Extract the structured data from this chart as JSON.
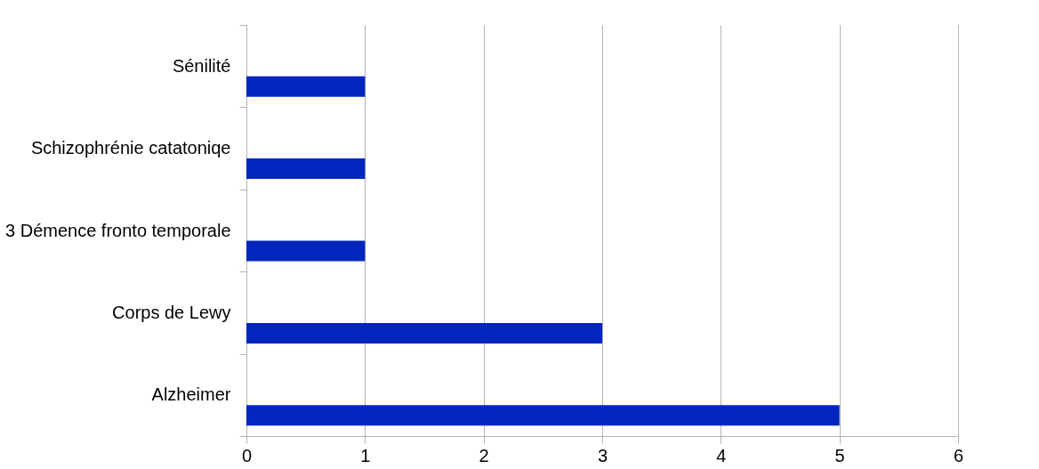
{
  "chart_data": {
    "type": "bar",
    "orientation": "horizontal",
    "categories": [
      "Sénilité",
      "Schizophrénie catatoniqe",
      "3 Démence fronto temporale",
      "Corps de Lewy",
      "Alzheimer"
    ],
    "values": [
      1,
      1,
      1,
      3,
      5
    ],
    "color": "#0026be",
    "xlim": [
      0,
      6
    ],
    "xticks": [
      0,
      1,
      2,
      3,
      4,
      5,
      6
    ],
    "grid": "x"
  }
}
